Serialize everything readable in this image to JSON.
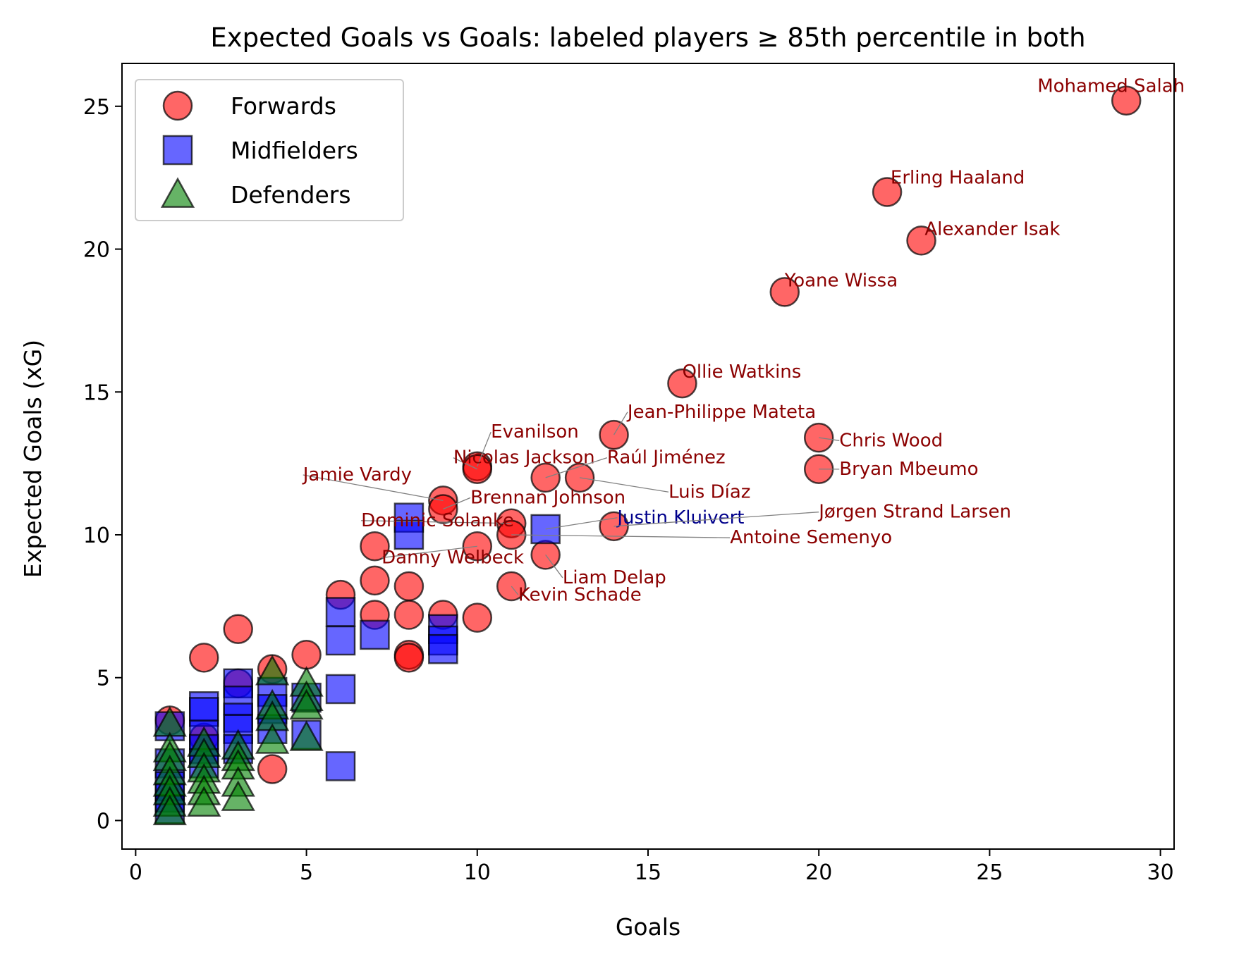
{
  "chart_data": {
    "type": "scatter",
    "title": "Expected Goals vs Goals: labeled players ≥ 85th percentile in both",
    "xlabel": "Goals",
    "ylabel": "Expected Goals (xG)",
    "xlim": [
      -0.4,
      30.4
    ],
    "ylim": [
      -1.0,
      26.5
    ],
    "xticks": [
      0,
      5,
      10,
      15,
      20,
      25,
      30
    ],
    "yticks": [
      0,
      5,
      10,
      15,
      20,
      25
    ],
    "grid": false,
    "legend": {
      "position": "upper-left"
    },
    "series": [
      {
        "name": "Forwards",
        "marker": "circle",
        "color": "#ff0000",
        "points": [
          [
            29,
            25.2
          ],
          [
            22,
            22.0
          ],
          [
            23,
            20.3
          ],
          [
            19,
            18.5
          ],
          [
            16,
            15.3
          ],
          [
            14,
            13.5
          ],
          [
            20,
            13.4
          ],
          [
            20,
            12.3
          ],
          [
            10,
            12.4
          ],
          [
            10,
            12.3
          ],
          [
            12,
            12.0
          ],
          [
            13,
            12.0
          ],
          [
            9,
            11.2
          ],
          [
            9,
            10.9
          ],
          [
            11,
            10.4
          ],
          [
            11,
            10.0
          ],
          [
            14,
            10.3
          ],
          [
            12,
            9.3
          ],
          [
            11,
            8.2
          ],
          [
            10,
            9.6
          ],
          [
            7,
            9.6
          ],
          [
            7,
            8.4
          ],
          [
            8,
            8.2
          ],
          [
            7,
            7.2
          ],
          [
            8,
            7.2
          ],
          [
            9,
            7.2
          ],
          [
            10,
            7.1
          ],
          [
            8,
            5.8
          ],
          [
            8,
            5.7
          ],
          [
            6,
            7.9
          ],
          [
            5,
            5.8
          ],
          [
            3,
            6.7
          ],
          [
            2,
            5.7
          ],
          [
            4,
            5.3
          ],
          [
            3,
            4.8
          ],
          [
            2,
            2.9
          ],
          [
            1,
            3.5
          ],
          [
            4,
            1.8
          ]
        ]
      },
      {
        "name": "Midfielders",
        "marker": "square",
        "color": "#0000ff",
        "points": [
          [
            8,
            10.6
          ],
          [
            8,
            10.0
          ],
          [
            12,
            10.2
          ],
          [
            9,
            6.7
          ],
          [
            9,
            6.3
          ],
          [
            9,
            6.0
          ],
          [
            6,
            7.3
          ],
          [
            6,
            6.3
          ],
          [
            7,
            6.5
          ],
          [
            6,
            4.6
          ],
          [
            6,
            1.9
          ],
          [
            5,
            4.3
          ],
          [
            5,
            3.0
          ],
          [
            4,
            4.5
          ],
          [
            4,
            3.9
          ],
          [
            3,
            4.8
          ],
          [
            3,
            4.2
          ],
          [
            3,
            3.6
          ],
          [
            3,
            3.2
          ],
          [
            3,
            2.5
          ],
          [
            2,
            4.0
          ],
          [
            2,
            3.8
          ],
          [
            2,
            3.0
          ],
          [
            2,
            2.5
          ],
          [
            2,
            2.0
          ],
          [
            1,
            3.3
          ],
          [
            1,
            2.0
          ],
          [
            1,
            1.2
          ],
          [
            1,
            0.8
          ],
          [
            1,
            0.4
          ],
          [
            4,
            3.2
          ]
        ]
      },
      {
        "name": "Defenders",
        "marker": "triangle",
        "color": "#008000",
        "points": [
          [
            1,
            3.4
          ],
          [
            1,
            2.5
          ],
          [
            1,
            2.2
          ],
          [
            1,
            1.7
          ],
          [
            1,
            1.3
          ],
          [
            1,
            1.0
          ],
          [
            1,
            0.6
          ],
          [
            1,
            0.3
          ],
          [
            2,
            2.7
          ],
          [
            2,
            2.3
          ],
          [
            2,
            1.8
          ],
          [
            2,
            1.4
          ],
          [
            2,
            1.0
          ],
          [
            2,
            0.6
          ],
          [
            3,
            2.6
          ],
          [
            3,
            2.2
          ],
          [
            3,
            1.9
          ],
          [
            3,
            1.3
          ],
          [
            3,
            0.8
          ],
          [
            4,
            5.2
          ],
          [
            4,
            4.0
          ],
          [
            4,
            3.6
          ],
          [
            4,
            2.8
          ],
          [
            5,
            4.8
          ],
          [
            5,
            4.3
          ],
          [
            5,
            4.0
          ],
          [
            5,
            2.9
          ]
        ]
      }
    ],
    "annotations": [
      {
        "text": "Mohamed Salah",
        "x": 29,
        "y": 25.2,
        "tx": 26.4,
        "ty": 25.5,
        "color": "#8b0000"
      },
      {
        "text": "Erling Haaland",
        "x": 22,
        "y": 22.0,
        "tx": 22.1,
        "ty": 22.3,
        "color": "#8b0000"
      },
      {
        "text": "Alexander Isak",
        "x": 23,
        "y": 20.3,
        "tx": 23.1,
        "ty": 20.5,
        "color": "#8b0000"
      },
      {
        "text": "Yoane Wissa",
        "x": 19,
        "y": 18.5,
        "tx": 19.0,
        "ty": 18.7,
        "color": "#8b0000"
      },
      {
        "text": "Ollie Watkins",
        "x": 16,
        "y": 15.3,
        "tx": 16.0,
        "ty": 15.5,
        "color": "#8b0000"
      },
      {
        "text": "Jean-Philippe Mateta",
        "x": 14,
        "y": 13.5,
        "tx": 14.4,
        "ty": 14.1,
        "color": "#8b0000",
        "line": true
      },
      {
        "text": "Chris Wood",
        "x": 20,
        "y": 13.4,
        "tx": 20.6,
        "ty": 13.1,
        "color": "#8b0000",
        "line": true
      },
      {
        "text": "Bryan Mbeumo",
        "x": 20,
        "y": 12.3,
        "tx": 20.6,
        "ty": 12.1,
        "color": "#8b0000",
        "line": true
      },
      {
        "text": "Evanilson",
        "x": 10,
        "y": 12.4,
        "tx": 10.4,
        "ty": 13.4,
        "color": "#8b0000",
        "line": true
      },
      {
        "text": "Nicolas Jackson",
        "x": 10,
        "y": 12.3,
        "tx": 9.3,
        "ty": 12.5,
        "color": "#8b0000",
        "line": true
      },
      {
        "text": "Raúl Jiménez",
        "x": 12,
        "y": 12.0,
        "tx": 13.8,
        "ty": 12.5,
        "color": "#8b0000",
        "line": true
      },
      {
        "text": "Luis Díaz",
        "x": 13,
        "y": 12.0,
        "tx": 15.6,
        "ty": 11.3,
        "color": "#8b0000",
        "line": true
      },
      {
        "text": "Jamie Vardy",
        "x": 9,
        "y": 11.2,
        "tx": 4.9,
        "ty": 11.9,
        "color": "#8b0000",
        "line": true
      },
      {
        "text": "Brennan Johnson",
        "x": 9,
        "y": 10.9,
        "tx": 9.8,
        "ty": 11.1,
        "color": "#8b0000",
        "line": true
      },
      {
        "text": "Dominic Solanke",
        "x": 11,
        "y": 10.4,
        "tx": 6.6,
        "ty": 10.3,
        "color": "#8b0000",
        "line": true
      },
      {
        "text": "Justin Kluivert",
        "x": 12,
        "y": 10.2,
        "tx": 14.1,
        "ty": 10.4,
        "color": "#00008b",
        "line": true
      },
      {
        "text": "Jørgen Strand Larsen",
        "x": 14,
        "y": 10.3,
        "tx": 20.0,
        "ty": 10.6,
        "color": "#8b0000",
        "line": true
      },
      {
        "text": "Antoine Semenyo",
        "x": 11,
        "y": 10.0,
        "tx": 17.4,
        "ty": 9.7,
        "color": "#8b0000",
        "line": true
      },
      {
        "text": "Danny Welbeck",
        "x": 10,
        "y": 9.6,
        "tx": 7.2,
        "ty": 9.0,
        "color": "#8b0000",
        "line": true
      },
      {
        "text": "Liam Delap",
        "x": 12,
        "y": 9.3,
        "tx": 12.5,
        "ty": 8.3,
        "color": "#8b0000",
        "line": true
      },
      {
        "text": "Kevin Schade",
        "x": 11,
        "y": 8.2,
        "tx": 11.2,
        "ty": 7.7,
        "color": "#8b0000",
        "line": true
      }
    ]
  }
}
